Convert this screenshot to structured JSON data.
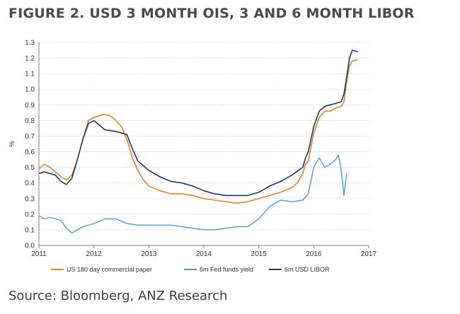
{
  "figure_title": "FIGURE 2. USD 3 MONTH OIS, 3 AND 6 MONTH LIBOR",
  "source": "Source: Bloomberg, ANZ Research",
  "chart_data": {
    "type": "line",
    "title": "",
    "xlabel": "",
    "ylabel": "%",
    "xlim": [
      2011,
      2017
    ],
    "ylim": [
      0,
      1.3
    ],
    "x_ticks": [
      "2011",
      "2012",
      "2013",
      "2014",
      "2015",
      "2016",
      "2017"
    ],
    "y_ticks": [
      "0.0",
      "0.1",
      "0.2",
      "0.3",
      "0.4",
      "0.5",
      "0.6",
      "0.7",
      "0.8",
      "0.9",
      "1.0",
      "1.1",
      "1.2",
      "1.3"
    ],
    "grid": "horizontal",
    "legend_position": "bottom",
    "series": [
      {
        "name": "US 180 day commercial paper",
        "color": "#e8821e",
        "x": [
          2011.0,
          2011.1,
          2011.2,
          2011.3,
          2011.4,
          2011.5,
          2011.6,
          2011.7,
          2011.8,
          2011.9,
          2012.0,
          2012.1,
          2012.2,
          2012.3,
          2012.4,
          2012.5,
          2012.6,
          2012.7,
          2012.8,
          2012.9,
          2013.0,
          2013.2,
          2013.4,
          2013.6,
          2013.8,
          2014.0,
          2014.2,
          2014.4,
          2014.6,
          2014.8,
          2015.0,
          2015.2,
          2015.4,
          2015.6,
          2015.7,
          2015.8,
          2015.85,
          2015.9,
          2016.0,
          2016.1,
          2016.2,
          2016.3,
          2016.4,
          2016.5,
          2016.55,
          2016.6,
          2016.65,
          2016.7,
          2016.8
        ],
        "values": [
          0.49,
          0.52,
          0.5,
          0.47,
          0.44,
          0.42,
          0.45,
          0.55,
          0.68,
          0.8,
          0.82,
          0.83,
          0.84,
          0.83,
          0.8,
          0.76,
          0.68,
          0.56,
          0.48,
          0.42,
          0.38,
          0.35,
          0.33,
          0.33,
          0.32,
          0.3,
          0.29,
          0.28,
          0.27,
          0.28,
          0.3,
          0.32,
          0.34,
          0.37,
          0.4,
          0.46,
          0.52,
          0.54,
          0.72,
          0.82,
          0.86,
          0.86,
          0.88,
          0.89,
          0.92,
          1.05,
          1.15,
          1.18,
          1.19
        ]
      },
      {
        "name": "6m Fed funds yield",
        "color": "#4a9ed6",
        "x": [
          2011.0,
          2011.1,
          2011.2,
          2011.3,
          2011.4,
          2011.5,
          2011.6,
          2011.7,
          2011.8,
          2012.0,
          2012.2,
          2012.4,
          2012.6,
          2012.8,
          2013.0,
          2013.2,
          2013.4,
          2013.6,
          2013.8,
          2014.0,
          2014.2,
          2014.4,
          2014.6,
          2014.8,
          2015.0,
          2015.2,
          2015.4,
          2015.6,
          2015.8,
          2015.9,
          2016.0,
          2016.1,
          2016.2,
          2016.3,
          2016.4,
          2016.45,
          2016.5,
          2016.55,
          2016.6
        ],
        "values": [
          0.19,
          0.17,
          0.18,
          0.17,
          0.16,
          0.11,
          0.08,
          0.1,
          0.12,
          0.14,
          0.17,
          0.17,
          0.14,
          0.13,
          0.13,
          0.13,
          0.13,
          0.12,
          0.11,
          0.1,
          0.1,
          0.11,
          0.12,
          0.12,
          0.17,
          0.25,
          0.29,
          0.28,
          0.29,
          0.33,
          0.5,
          0.56,
          0.5,
          0.52,
          0.55,
          0.58,
          0.48,
          0.32,
          0.46
        ]
      },
      {
        "name": "6m USD LIBOR",
        "color": "#1f3a5f",
        "x": [
          2011.0,
          2011.1,
          2011.2,
          2011.3,
          2011.4,
          2011.5,
          2011.6,
          2011.7,
          2011.8,
          2011.9,
          2012.0,
          2012.2,
          2012.4,
          2012.6,
          2012.7,
          2012.8,
          2012.9,
          2013.0,
          2013.2,
          2013.4,
          2013.6,
          2013.8,
          2014.0,
          2014.2,
          2014.4,
          2014.6,
          2014.8,
          2015.0,
          2015.2,
          2015.4,
          2015.6,
          2015.8,
          2015.85,
          2015.9,
          2016.0,
          2016.1,
          2016.2,
          2016.3,
          2016.4,
          2016.5,
          2016.55,
          2016.6,
          2016.65,
          2016.7,
          2016.8
        ],
        "values": [
          0.46,
          0.47,
          0.46,
          0.45,
          0.41,
          0.39,
          0.43,
          0.55,
          0.68,
          0.78,
          0.8,
          0.74,
          0.73,
          0.71,
          0.62,
          0.54,
          0.51,
          0.48,
          0.44,
          0.41,
          0.4,
          0.38,
          0.35,
          0.33,
          0.32,
          0.32,
          0.32,
          0.34,
          0.38,
          0.41,
          0.45,
          0.5,
          0.56,
          0.6,
          0.76,
          0.86,
          0.89,
          0.9,
          0.91,
          0.92,
          0.97,
          1.08,
          1.2,
          1.25,
          1.24
        ]
      }
    ]
  }
}
